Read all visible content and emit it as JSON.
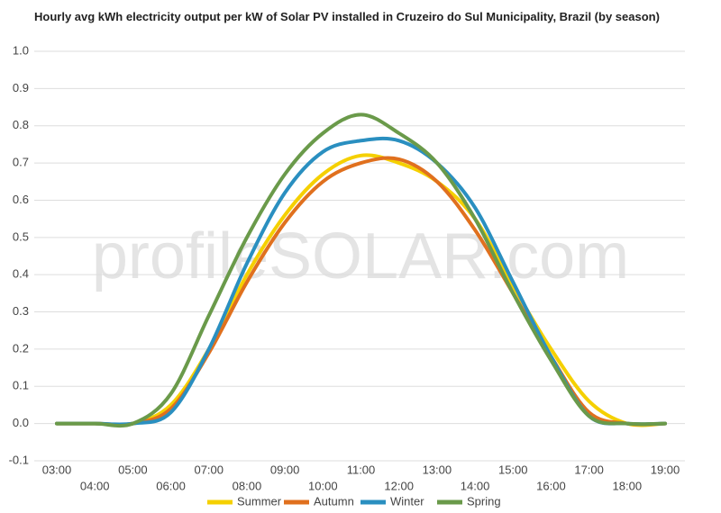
{
  "chart_data": {
    "type": "line",
    "title": "Hourly avg kWh electricity output per kW of Solar PV installed in Cruzeiro do Sul Municipality, Brazil (by season)",
    "watermark": "profileSOLAR.com",
    "categories": [
      "03:00",
      "04:00",
      "05:00",
      "06:00",
      "07:00",
      "08:00",
      "09:00",
      "10:00",
      "11:00",
      "12:00",
      "13:00",
      "14:00",
      "15:00",
      "16:00",
      "17:00",
      "18:00",
      "19:00"
    ],
    "series": [
      {
        "name": "Summer",
        "color": "#f5d000",
        "values": [
          0,
          0,
          0,
          0.05,
          0.2,
          0.4,
          0.56,
          0.67,
          0.72,
          0.7,
          0.65,
          0.55,
          0.37,
          0.2,
          0.06,
          0,
          0
        ]
      },
      {
        "name": "Autumn",
        "color": "#e0701e",
        "values": [
          0,
          0,
          0,
          0.04,
          0.19,
          0.38,
          0.54,
          0.65,
          0.7,
          0.71,
          0.65,
          0.52,
          0.35,
          0.18,
          0.03,
          0,
          0
        ]
      },
      {
        "name": "Winter",
        "color": "#2a8fc0",
        "values": [
          0,
          0,
          0,
          0.03,
          0.2,
          0.43,
          0.62,
          0.73,
          0.76,
          0.76,
          0.7,
          0.58,
          0.38,
          0.18,
          0.02,
          0,
          0
        ]
      },
      {
        "name": "Spring",
        "color": "#6a9a4a",
        "values": [
          0,
          0,
          0,
          0.08,
          0.29,
          0.5,
          0.67,
          0.78,
          0.83,
          0.78,
          0.7,
          0.55,
          0.35,
          0.17,
          0.02,
          0,
          0
        ]
      }
    ],
    "ylim": [
      -0.1,
      1.0
    ],
    "yticks": [
      {
        "value": -0.1,
        "label": "-0.1"
      },
      {
        "value": 0,
        "label": "0.0"
      },
      0.1,
      0.2,
      0.3,
      0.4,
      0.5,
      0.6,
      0.7,
      0.8,
      0.9,
      {
        "value": 1,
        "label": "1.0"
      }
    ],
    "grid": true,
    "legend": "bottom"
  }
}
